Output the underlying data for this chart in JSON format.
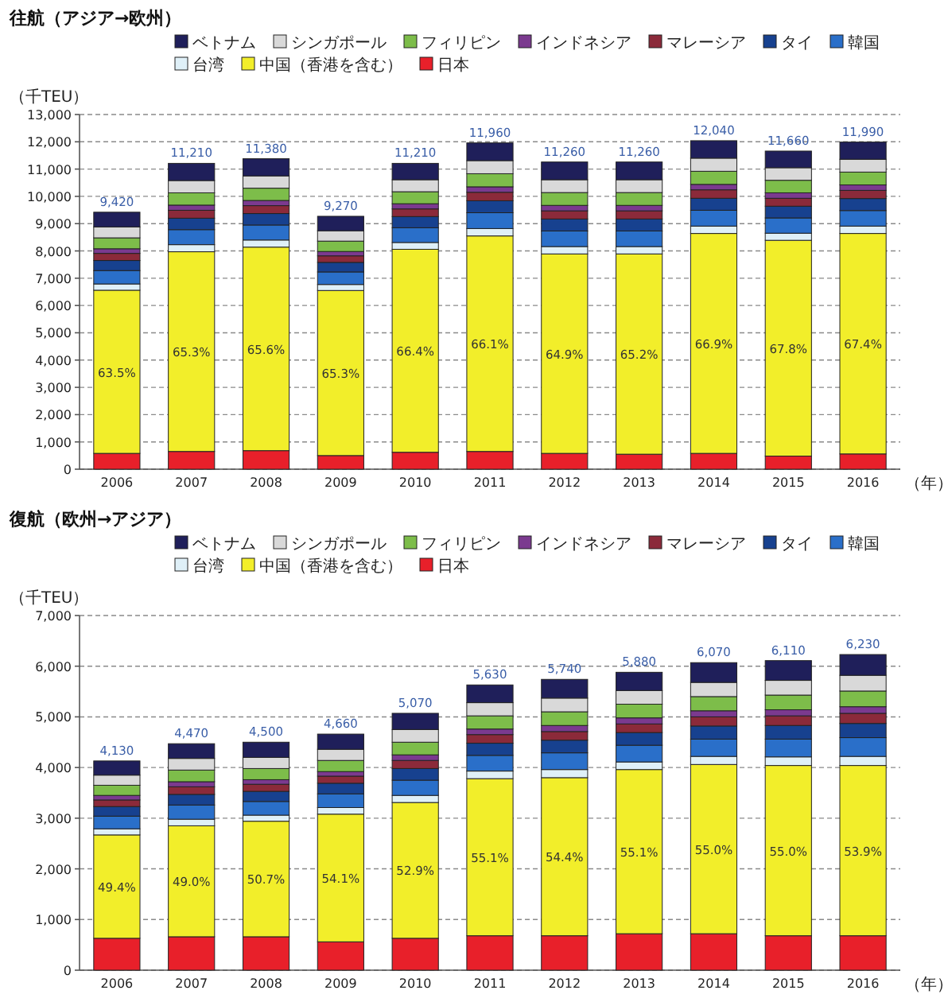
{
  "chart_data": [
    {
      "type": "bar",
      "stacked": true,
      "title": "往航（アジア→欧州）",
      "ylabel": "（千TEU）",
      "xlabel": "（年）",
      "legend": "top",
      "grid": "y",
      "categories": [
        "2006",
        "2007",
        "2008",
        "2009",
        "2010",
        "2011",
        "2012",
        "2013",
        "2014",
        "2015",
        "2016"
      ],
      "ylim": [
        0,
        13000
      ],
      "yticks": [
        0,
        {
          "value": 1000,
          "label": "1,000"
        },
        {
          "value": 2000,
          "label": "2,000"
        },
        {
          "value": 3000,
          "label": "3,000"
        },
        {
          "value": 4000,
          "label": "4,000"
        },
        {
          "value": 5000,
          "label": "5,000"
        },
        {
          "value": 6000,
          "label": "6,000"
        },
        {
          "value": 7000,
          "label": "7,000"
        },
        {
          "value": 8000,
          "label": "8,000"
        },
        {
          "value": 9000,
          "label": "9,000"
        },
        {
          "value": 10000,
          "label": "10,000"
        },
        {
          "value": 11000,
          "label": "11,000"
        },
        {
          "value": 12000,
          "label": "12,000"
        },
        {
          "value": 13000,
          "label": "13,000"
        }
      ],
      "series": [
        {
          "name": "日本",
          "color": "#e8202a",
          "values": [
            580,
            650,
            680,
            500,
            620,
            650,
            580,
            550,
            580,
            480,
            560
          ]
        },
        {
          "name": "中国（香港を含む）",
          "color": "#f2ee2a",
          "values": [
            5980,
            7320,
            7460,
            6050,
            7440,
            7900,
            7310,
            7340,
            8060,
            7910,
            8080
          ]
        },
        {
          "name": "台湾",
          "color": "#dff0f8",
          "values": [
            230,
            260,
            260,
            220,
            250,
            270,
            270,
            270,
            270,
            260,
            270
          ]
        },
        {
          "name": "韓国",
          "color": "#2a6fc9",
          "values": [
            490,
            550,
            550,
            460,
            540,
            580,
            570,
            570,
            580,
            560,
            570
          ]
        },
        {
          "name": "タイ",
          "color": "#17418f",
          "values": [
            370,
            420,
            420,
            350,
            410,
            440,
            440,
            440,
            440,
            430,
            440
          ]
        },
        {
          "name": "マレーシア",
          "color": "#8b2a3a",
          "values": [
            260,
            290,
            290,
            240,
            280,
            310,
            300,
            300,
            310,
            290,
            300
          ]
        },
        {
          "name": "インドネシア",
          "color": "#7b3a8f",
          "values": [
            170,
            190,
            190,
            160,
            190,
            200,
            200,
            200,
            200,
            200,
            200
          ]
        },
        {
          "name": "フィリピン",
          "color": "#7dbd4a",
          "values": [
            400,
            450,
            450,
            380,
            440,
            480,
            470,
            470,
            480,
            460,
            470
          ]
        },
        {
          "name": "シンガポール",
          "color": "#d9d9d9",
          "values": [
            400,
            450,
            450,
            380,
            440,
            480,
            470,
            470,
            480,
            460,
            470
          ]
        },
        {
          "name": "ベトナム",
          "color": "#1f1f5a",
          "values": [
            540,
            630,
            630,
            530,
            600,
            650,
            650,
            650,
            640,
            610,
            630
          ]
        }
      ],
      "annotations": [
        "63.5%",
        "65.3%",
        "65.6%",
        "65.3%",
        "66.4%",
        "66.1%",
        "64.9%",
        "65.2%",
        "66.9%",
        "67.8%",
        "67.4%"
      ],
      "totals": [
        "9,420",
        "11,210",
        "11,380",
        "9,270",
        "11,210",
        "11,960",
        "11,260",
        "11,260",
        "12,040",
        "11,660",
        "11,990"
      ]
    },
    {
      "type": "bar",
      "stacked": true,
      "title": "復航（欧州→アジア）",
      "ylabel": "（千TEU）",
      "xlabel": "（年）",
      "legend": "top",
      "grid": "y",
      "categories": [
        "2006",
        "2007",
        "2008",
        "2009",
        "2010",
        "2011",
        "2012",
        "2013",
        "2014",
        "2015",
        "2016"
      ],
      "ylim": [
        0,
        7000
      ],
      "yticks": [
        0,
        {
          "value": 1000,
          "label": "1,000"
        },
        {
          "value": 2000,
          "label": "2,000"
        },
        {
          "value": 3000,
          "label": "3,000"
        },
        {
          "value": 4000,
          "label": "4,000"
        },
        {
          "value": 5000,
          "label": "5,000"
        },
        {
          "value": 6000,
          "label": "6,000"
        },
        {
          "value": 7000,
          "label": "7,000"
        }
      ],
      "series": [
        {
          "name": "日本",
          "color": "#e8202a",
          "values": [
            630,
            660,
            660,
            560,
            630,
            680,
            680,
            720,
            720,
            680,
            680
          ]
        },
        {
          "name": "中国（香港を含む）",
          "color": "#f2ee2a",
          "values": [
            2040,
            2190,
            2280,
            2520,
            2680,
            3100,
            3120,
            3240,
            3340,
            3360,
            3360
          ]
        },
        {
          "name": "台湾",
          "color": "#dff0f8",
          "values": [
            120,
            130,
            120,
            130,
            140,
            150,
            160,
            150,
            160,
            170,
            180
          ]
        },
        {
          "name": "韓国",
          "color": "#2a6fc9",
          "values": [
            250,
            280,
            270,
            270,
            300,
            310,
            330,
            330,
            340,
            350,
            370
          ]
        },
        {
          "name": "タイ",
          "color": "#17418f",
          "values": [
            190,
            210,
            200,
            210,
            230,
            240,
            250,
            250,
            260,
            270,
            280
          ]
        },
        {
          "name": "マレーシア",
          "color": "#8b2a3a",
          "values": [
            130,
            150,
            140,
            140,
            160,
            170,
            170,
            170,
            180,
            190,
            200
          ]
        },
        {
          "name": "インドネシア",
          "color": "#7b3a8f",
          "values": [
            90,
            100,
            90,
            90,
            110,
            110,
            120,
            120,
            120,
            120,
            130
          ]
        },
        {
          "name": "フィリピン",
          "color": "#7dbd4a",
          "values": [
            200,
            230,
            220,
            220,
            250,
            260,
            270,
            270,
            280,
            290,
            310
          ]
        },
        {
          "name": "シンガポール",
          "color": "#d9d9d9",
          "values": [
            200,
            230,
            220,
            220,
            250,
            260,
            270,
            270,
            280,
            290,
            310
          ]
        },
        {
          "name": "ベトナム",
          "color": "#1f1f5a",
          "values": [
            280,
            290,
            300,
            300,
            320,
            350,
            370,
            360,
            390,
            390,
            410
          ]
        }
      ],
      "annotations": [
        "49.4%",
        "49.0%",
        "50.7%",
        "54.1%",
        "52.9%",
        "55.1%",
        "54.4%",
        "55.1%",
        "55.0%",
        "55.0%",
        "53.9%"
      ],
      "totals": [
        "4,130",
        "4,470",
        "4,500",
        "4,660",
        "5,070",
        "5,630",
        "5,740",
        "5,880",
        "6,070",
        "6,110",
        "6,230"
      ]
    }
  ]
}
